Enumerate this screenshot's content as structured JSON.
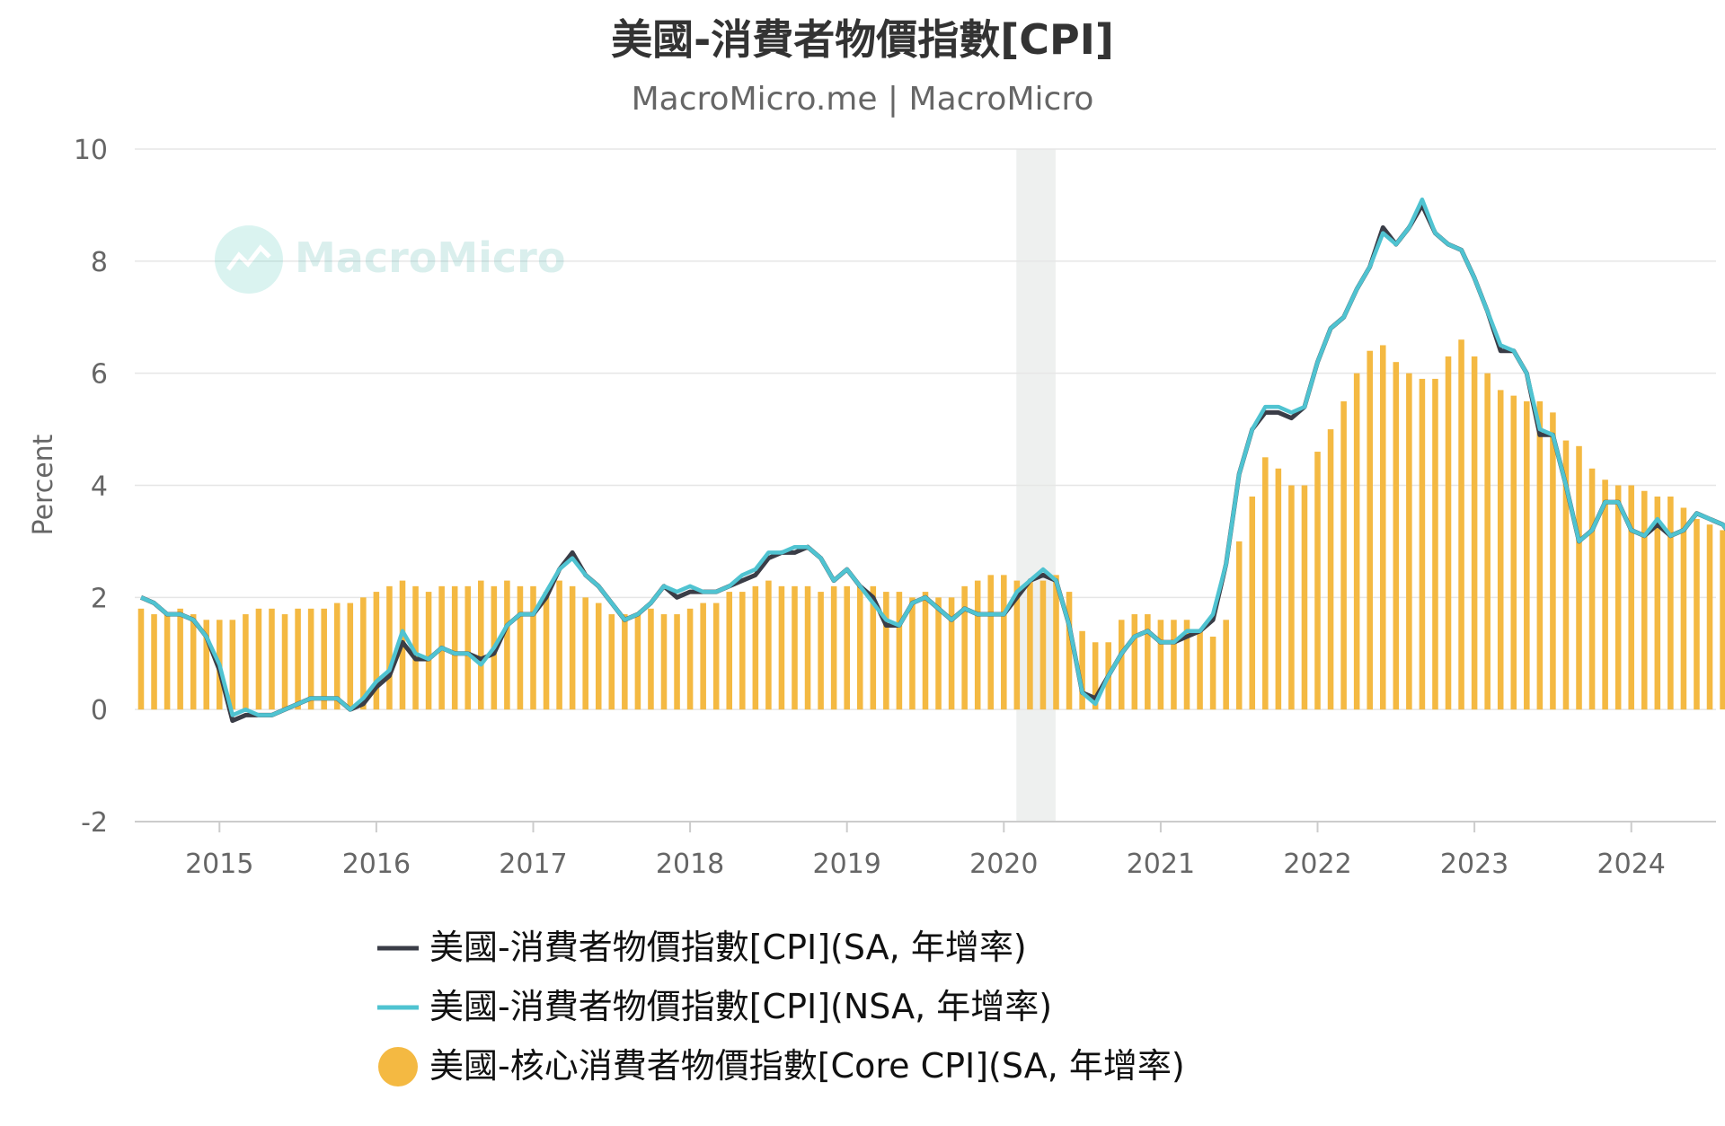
{
  "chart_data": {
    "type": "bar+line",
    "title": "美國-消費者物價指數[CPI]",
    "subtitle": "MacroMicro.me | MacroMicro",
    "watermark": "MacroMicro",
    "ylabel": "Percent",
    "ylim": [
      -2,
      10
    ],
    "yticks": [
      -2,
      0,
      2,
      4,
      6,
      8,
      10
    ],
    "xlim": [
      2014.46,
      2024.54
    ],
    "xticks": [
      2015,
      2016,
      2017,
      2018,
      2019,
      2020,
      2021,
      2022,
      2023,
      2024
    ],
    "grid": true,
    "legend_position": "bottom",
    "shaded_region": [
      2020.08,
      2020.33
    ],
    "start": [
      2014,
      7
    ],
    "colors": {
      "sa": "#3a3d47",
      "nsa": "#4fc3d1",
      "core": "#f4b942",
      "grid": "#e6e6e6",
      "shade": "#eef0ef"
    },
    "series": [
      {
        "name": "美國-消費者物價指數[CPI](SA, 年增率)",
        "kind": "line",
        "color": "#3a3d47",
        "values": [
          2.0,
          1.9,
          1.7,
          1.7,
          1.6,
          1.3,
          0.7,
          -0.2,
          -0.1,
          -0.1,
          -0.1,
          0.0,
          0.1,
          0.2,
          0.2,
          0.2,
          0.0,
          0.1,
          0.4,
          0.6,
          1.2,
          0.9,
          0.9,
          1.1,
          1.0,
          1.0,
          0.9,
          1.0,
          1.5,
          1.7,
          1.7,
          2.0,
          2.5,
          2.8,
          2.4,
          2.2,
          1.9,
          1.6,
          1.7,
          1.9,
          2.2,
          2.0,
          2.1,
          2.1,
          2.1,
          2.2,
          2.3,
          2.4,
          2.7,
          2.8,
          2.8,
          2.9,
          2.7,
          2.3,
          2.5,
          2.2,
          2.0,
          1.5,
          1.5,
          1.9,
          2.0,
          1.8,
          1.6,
          1.8,
          1.7,
          1.7,
          1.7,
          2.0,
          2.3,
          2.4,
          2.3,
          1.5,
          0.3,
          0.2,
          0.6,
          1.0,
          1.3,
          1.4,
          1.2,
          1.2,
          1.3,
          1.4,
          1.6,
          2.6,
          4.2,
          5.0,
          5.3,
          5.3,
          5.2,
          5.4,
          6.2,
          6.8,
          7.0,
          7.5,
          7.9,
          8.6,
          8.3,
          8.6,
          9.0,
          8.5,
          8.3,
          8.2,
          7.7,
          7.1,
          6.4,
          6.4,
          6.0,
          4.9,
          4.9,
          4.0,
          3.0,
          3.2,
          3.7,
          3.7,
          3.2,
          3.1,
          3.3,
          3.1,
          3.2,
          3.5,
          3.4,
          3.3,
          3.0,
          2.9
        ]
      },
      {
        "name": "美國-消費者物價指數[CPI](NSA, 年增率)",
        "kind": "line",
        "color": "#4fc3d1",
        "values": [
          2.0,
          1.9,
          1.7,
          1.7,
          1.6,
          1.3,
          0.8,
          -0.1,
          0.0,
          -0.1,
          -0.1,
          0.0,
          0.1,
          0.2,
          0.2,
          0.2,
          0.0,
          0.2,
          0.5,
          0.7,
          1.4,
          1.0,
          0.9,
          1.1,
          1.0,
          1.0,
          0.8,
          1.1,
          1.5,
          1.7,
          1.7,
          2.1,
          2.5,
          2.7,
          2.4,
          2.2,
          1.9,
          1.6,
          1.7,
          1.9,
          2.2,
          2.1,
          2.2,
          2.1,
          2.1,
          2.2,
          2.4,
          2.5,
          2.8,
          2.8,
          2.9,
          2.9,
          2.7,
          2.3,
          2.5,
          2.2,
          1.9,
          1.6,
          1.5,
          1.9,
          2.0,
          1.8,
          1.6,
          1.8,
          1.7,
          1.7,
          1.7,
          2.1,
          2.3,
          2.5,
          2.3,
          1.5,
          0.3,
          0.1,
          0.6,
          1.0,
          1.3,
          1.4,
          1.2,
          1.2,
          1.4,
          1.4,
          1.7,
          2.6,
          4.2,
          5.0,
          5.4,
          5.4,
          5.3,
          5.4,
          6.2,
          6.8,
          7.0,
          7.5,
          7.9,
          8.5,
          8.3,
          8.6,
          9.1,
          8.5,
          8.3,
          8.2,
          7.7,
          7.1,
          6.5,
          6.4,
          6.0,
          5.0,
          4.9,
          4.0,
          3.0,
          3.2,
          3.7,
          3.7,
          3.2,
          3.1,
          3.4,
          3.1,
          3.2,
          3.5,
          3.4,
          3.3,
          3.0,
          2.9
        ]
      },
      {
        "name": "美國-核心消費者物價指數[Core CPI](SA, 年增率)",
        "kind": "bar",
        "color": "#f4b942",
        "values": [
          1.8,
          1.7,
          1.7,
          1.8,
          1.7,
          1.6,
          1.6,
          1.6,
          1.7,
          1.8,
          1.8,
          1.7,
          1.8,
          1.8,
          1.8,
          1.9,
          1.9,
          2.0,
          2.1,
          2.2,
          2.3,
          2.2,
          2.1,
          2.2,
          2.2,
          2.2,
          2.3,
          2.2,
          2.3,
          2.2,
          2.2,
          2.1,
          2.3,
          2.2,
          2.0,
          1.9,
          1.7,
          1.7,
          1.7,
          1.8,
          1.7,
          1.7,
          1.8,
          1.9,
          1.9,
          2.1,
          2.1,
          2.2,
          2.3,
          2.2,
          2.2,
          2.2,
          2.1,
          2.2,
          2.2,
          2.2,
          2.2,
          2.1,
          2.1,
          2.0,
          2.1,
          2.0,
          2.0,
          2.2,
          2.3,
          2.4,
          2.4,
          2.3,
          2.3,
          2.3,
          2.4,
          2.1,
          1.4,
          1.2,
          1.2,
          1.6,
          1.7,
          1.7,
          1.6,
          1.6,
          1.6,
          1.4,
          1.3,
          1.6,
          3.0,
          3.8,
          4.5,
          4.3,
          4.0,
          4.0,
          4.6,
          5.0,
          5.5,
          6.0,
          6.4,
          6.5,
          6.2,
          6.0,
          5.9,
          5.9,
          6.3,
          6.6,
          6.3,
          6.0,
          5.7,
          5.6,
          5.5,
          5.5,
          5.3,
          4.8,
          4.7,
          4.3,
          4.1,
          4.0,
          4.0,
          3.9,
          3.8,
          3.8,
          3.6,
          3.4,
          3.3,
          3.2,
          3.2
        ]
      }
    ]
  }
}
